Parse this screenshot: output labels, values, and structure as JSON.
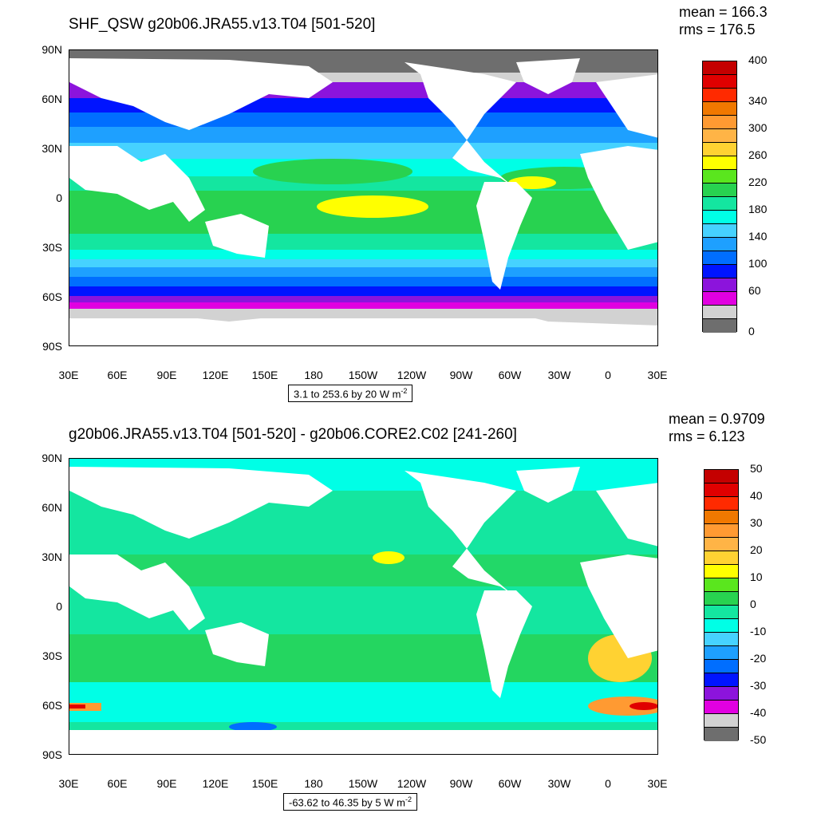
{
  "top": {
    "title": "SHF_QSW g20b06.JRA55.v13.T04 [501-520]",
    "mean": "mean = 166.3",
    "rms": "rms = 176.5",
    "caption": "3.1 to 253.6 by 20  W m",
    "caption_sup": "-2",
    "colorbar_colors": [
      "#c40000",
      "#e00000",
      "#ff2a00",
      "#f07800",
      "#ff9a32",
      "#ffb446",
      "#ffd232",
      "#ffff00",
      "#5ae61e",
      "#28d250",
      "#14e6a0",
      "#00ffe6",
      "#46d2ff",
      "#1ea0ff",
      "#006eff",
      "#0014ff",
      "#8c14dc",
      "#e100e1",
      "#d2d2d2",
      "#6e6e6e"
    ],
    "colorbar_labels": [
      "400",
      "340",
      "300",
      "260",
      "220",
      "180",
      "140",
      "100",
      "60",
      "0"
    ]
  },
  "bottom": {
    "title": "g20b06.JRA55.v13.T04 [501-520] - g20b06.CORE2.C02 [241-260]",
    "mean": "mean = 0.9709",
    "rms": "rms = 6.123",
    "caption": "-63.62 to 46.35 by 5  W m",
    "caption_sup": "-2",
    "colorbar_colors": [
      "#c40000",
      "#e00000",
      "#ff2a00",
      "#f07800",
      "#ff9a32",
      "#ffb446",
      "#ffd232",
      "#ffff00",
      "#5ae61e",
      "#28d250",
      "#14e6a0",
      "#00ffe6",
      "#46d2ff",
      "#1ea0ff",
      "#006eff",
      "#0014ff",
      "#8c14dc",
      "#e100e1",
      "#d2d2d2",
      "#6e6e6e"
    ],
    "colorbar_labels": [
      "50",
      "40",
      "30",
      "20",
      "10",
      "0",
      "-10",
      "-20",
      "-30",
      "-40",
      "-50"
    ]
  },
  "lat_labels": [
    "90N",
    "60N",
    "30N",
    "0",
    "30S",
    "60S",
    "90S"
  ],
  "lon_labels": [
    "30E",
    "60E",
    "90E",
    "120E",
    "150E",
    "180",
    "150W",
    "120W",
    "90W",
    "60W",
    "30W",
    "0",
    "30E"
  ]
}
